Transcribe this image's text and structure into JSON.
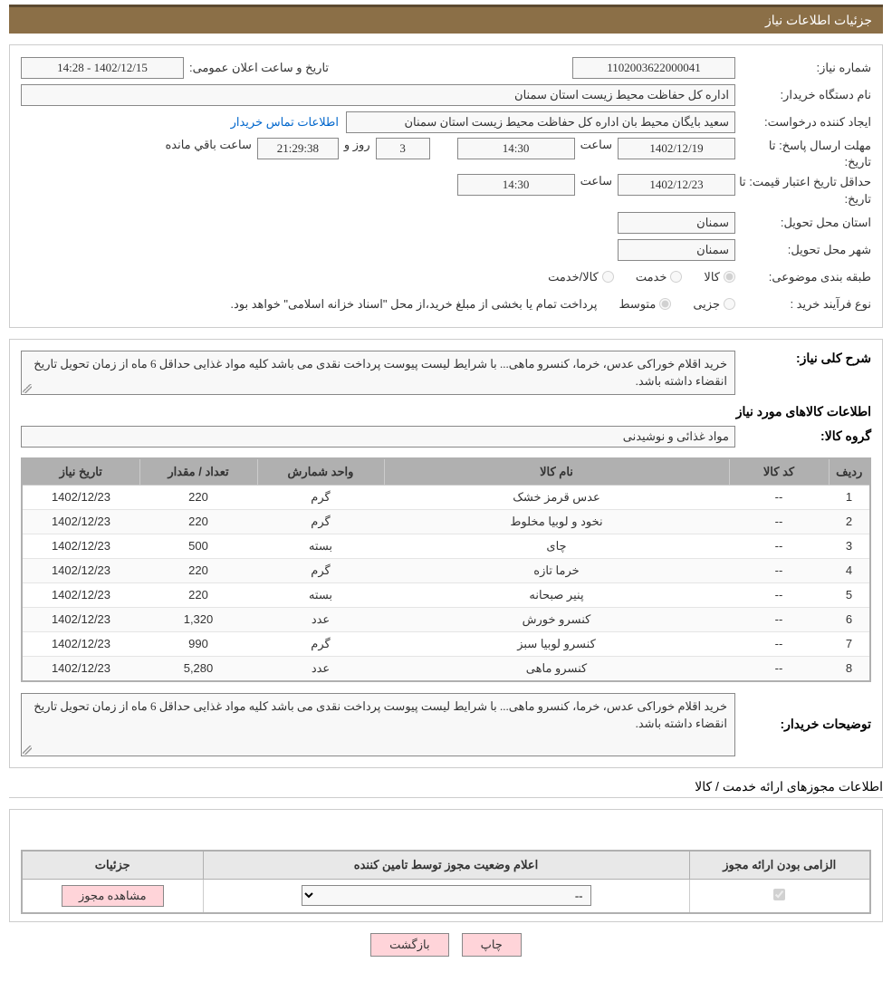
{
  "header": {
    "title": "جزئیات اطلاعات نیاز"
  },
  "need": {
    "number_label": "شماره نیاز:",
    "number_value": "1102003622000041",
    "announce_label": "تاریخ و ساعت اعلان عمومی:",
    "announce_value": "1402/12/15 - 14:28",
    "buyer_org_label": "نام دستگاه خریدار:",
    "buyer_org_value": "اداره کل حفاظت محیط زیست استان سمنان",
    "requester_label": "ایجاد کننده درخواست:",
    "requester_value": "سعید بایگان محیط بان اداره کل حفاظت محیط زیست استان سمنان",
    "contact_link": "اطلاعات تماس خریدار",
    "reply_deadline_label": "مهلت ارسال پاسخ:",
    "to_date_label": "تا تاریخ:",
    "reply_date": "1402/12/19",
    "time_label": "ساعت",
    "reply_time": "14:30",
    "days_value": "3",
    "days_label": "روز و",
    "countdown_value": "21:29:38",
    "remaining_label": "ساعت باقي مانده",
    "validity_label": "حداقل تاریخ اعتبار قیمت:",
    "validity_date": "1402/12/23",
    "validity_time": "14:30",
    "delivery_prov_label": "استان محل تحویل:",
    "delivery_prov_value": "سمنان",
    "delivery_city_label": "شهر محل تحویل:",
    "delivery_city_value": "سمنان",
    "classification_label": "طبقه بندی موضوعی:",
    "class_goods": "کالا",
    "class_service": "خدمت",
    "class_goods_service": "کالا/خدمت",
    "process_label": "نوع فرآیند خرید :",
    "process_partial": "جزیی",
    "process_medium": "متوسط",
    "process_note": "پرداخت تمام یا بخشی از مبلغ خرید،از محل \"اسناد خزانه اسلامی\" خواهد بود."
  },
  "details": {
    "overview_label": "شرح کلی نیاز:",
    "overview_text": "خرید اقلام خوراکی عدس، خرما، کنسرو ماهی... با شرایط لیست پیوست پرداخت نقدی می باشد کلیه مواد غذایی حداقل 6 ماه از زمان تحویل تاریخ انقضاء داشته باشد.",
    "items_title": "اطلاعات کالاهای مورد نیاز",
    "group_label": "گروه کالا:",
    "group_value": "مواد غذائی و نوشیدنی",
    "table": {
      "headers": {
        "row": "ردیف",
        "code": "کد کالا",
        "name": "نام کالا",
        "unit": "واحد شمارش",
        "qty": "تعداد / مقدار",
        "date": "تاریخ نیاز"
      },
      "col_widths": {
        "row": "46px",
        "code": "110px",
        "name": "auto",
        "unit": "140px",
        "qty": "130px",
        "date": "130px"
      },
      "rows": [
        {
          "n": "1",
          "code": "--",
          "name": "عدس قرمز خشک",
          "unit": "گرم",
          "qty": "220",
          "date": "1402/12/23"
        },
        {
          "n": "2",
          "code": "--",
          "name": "نخود و لوبیا مخلوط",
          "unit": "گرم",
          "qty": "220",
          "date": "1402/12/23"
        },
        {
          "n": "3",
          "code": "--",
          "name": "چای",
          "unit": "بسته",
          "qty": "500",
          "date": "1402/12/23"
        },
        {
          "n": "4",
          "code": "--",
          "name": "خرما تازه",
          "unit": "گرم",
          "qty": "220",
          "date": "1402/12/23"
        },
        {
          "n": "5",
          "code": "--",
          "name": "پنیر صبحانه",
          "unit": "بسته",
          "qty": "220",
          "date": "1402/12/23"
        },
        {
          "n": "6",
          "code": "--",
          "name": "کنسرو خورش",
          "unit": "عدد",
          "qty": "1,320",
          "date": "1402/12/23"
        },
        {
          "n": "7",
          "code": "--",
          "name": "کنسرو لوبیا سبز",
          "unit": "گرم",
          "qty": "990",
          "date": "1402/12/23"
        },
        {
          "n": "8",
          "code": "--",
          "name": "کنسرو ماهی",
          "unit": "عدد",
          "qty": "5,280",
          "date": "1402/12/23"
        }
      ]
    },
    "notes_label": "توضیحات خریدار:",
    "notes_text": "خرید اقلام خوراکی عدس، خرما، کنسرو ماهی... با شرایط لیست پیوست پرداخت نقدی می باشد کلیه مواد غذایی حداقل 6 ماه از زمان تحویل تاریخ انقضاء داشته باشد."
  },
  "permits": {
    "section_title": "اطلاعات مجوزهای ارائه خدمت / کالا",
    "headers": {
      "mandatory": "الزامی بودن ارائه مجوز",
      "status": "اعلام وضعیت مجوز توسط تامین کننده",
      "details": "جزئیات"
    },
    "select_placeholder": "--",
    "view_button": "مشاهده مجوز"
  },
  "footer": {
    "print": "چاپ",
    "back": "بازگشت"
  },
  "colors": {
    "header_bg": "#8b6f47",
    "header_border": "#5c4a30",
    "panel_border": "#cccccc",
    "th_bg": "#b0b0b0",
    "link": "#0066cc",
    "btn_bg": "#ffd4d9"
  }
}
